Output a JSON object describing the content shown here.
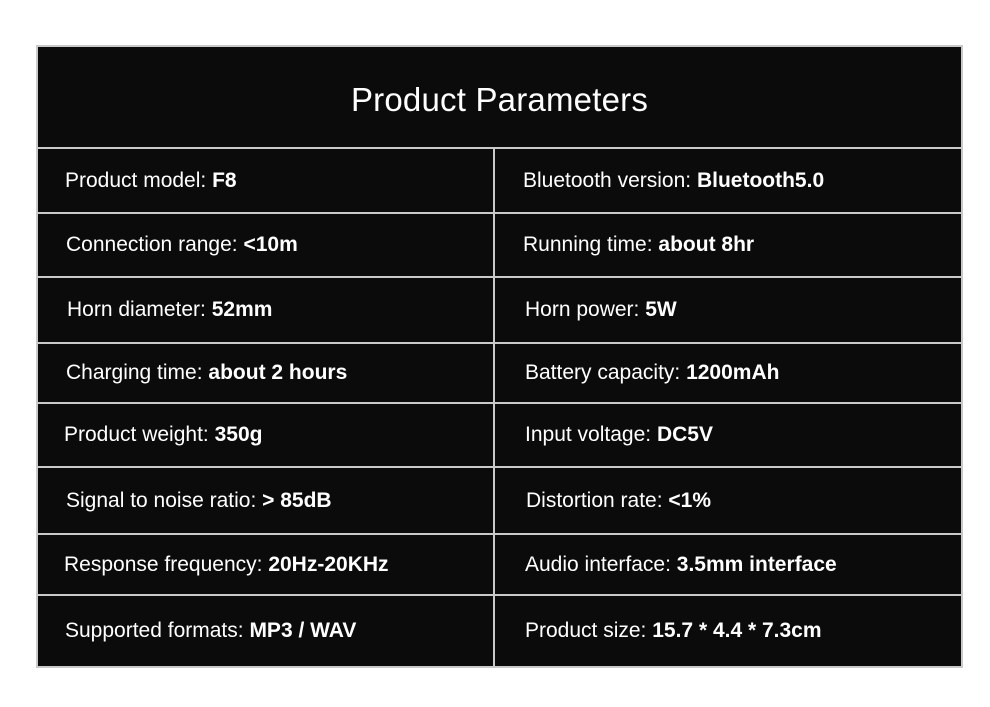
{
  "title": "Product Parameters",
  "rows": [
    {
      "left": {
        "label": "Product model: ",
        "value": "F8"
      },
      "right": {
        "label": "Bluetooth version: ",
        "value": "Bluetooth5.0"
      }
    },
    {
      "left": {
        "label": "Connection range: ",
        "value": "<10m"
      },
      "right": {
        "label": "Running time: ",
        "value": "about 8hr"
      }
    },
    {
      "left": {
        "label": "Horn diameter: ",
        "value": "52mm"
      },
      "right": {
        "label": "Horn power: ",
        "value": "5W"
      }
    },
    {
      "left": {
        "label": "Charging time: ",
        "value": "about 2 hours"
      },
      "right": {
        "label": "Battery capacity: ",
        "value": "1200mAh"
      }
    },
    {
      "left": {
        "label": "Product weight: ",
        "value": "350g"
      },
      "right": {
        "label": "Input voltage: ",
        "value": "DC5V"
      }
    },
    {
      "left": {
        "label": "Signal to noise ratio: ",
        "value": "> 85dB"
      },
      "right": {
        "label": "Distortion rate: ",
        "value": "<1%"
      }
    },
    {
      "left": {
        "label": "Response frequency: ",
        "value": "20Hz-20KHz"
      },
      "right": {
        "label": "Audio interface: ",
        "value": "3.5mm interface"
      }
    },
    {
      "left": {
        "label": "Supported formats: ",
        "value": "MP3 / WAV"
      },
      "right": {
        "label": "Product size: ",
        "value": "15.7 * 4.4 * 7.3cm"
      }
    }
  ]
}
